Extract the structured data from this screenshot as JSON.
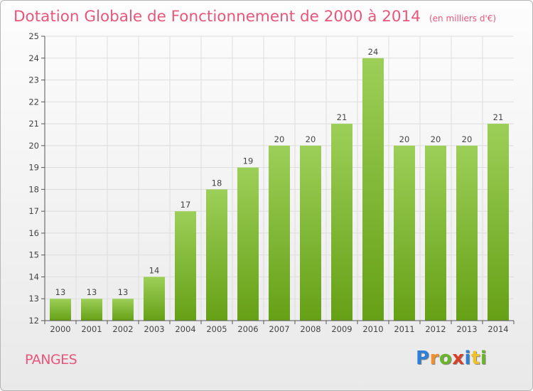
{
  "header": {
    "title": "Dotation Globale de Fonctionnement de 2000 à 2014",
    "unit_note": "(en milliers d'€)"
  },
  "commune": "PANGES",
  "brand": {
    "letters": [
      "P",
      "r",
      "o",
      "x",
      "i",
      "t",
      "i"
    ],
    "colors": [
      "#2f7fd6",
      "#f0912c",
      "#6bb52c",
      "#d9402b",
      "#2f7fd6",
      "#f0c12c",
      "#6bb52c"
    ]
  },
  "chart_data": {
    "type": "bar",
    "categories": [
      "2000",
      "2001",
      "2002",
      "2003",
      "2004",
      "2005",
      "2006",
      "2007",
      "2008",
      "2009",
      "2010",
      "2011",
      "2012",
      "2013",
      "2014"
    ],
    "values": [
      13,
      13,
      13,
      14,
      17,
      18,
      19,
      20,
      20,
      21,
      24,
      20,
      20,
      20,
      21
    ],
    "data_labels": [
      "13",
      "13",
      "13",
      "14",
      "17",
      "18",
      "19",
      "20",
      "20",
      "21",
      "24",
      "20",
      "20",
      "20",
      "21"
    ],
    "y_ticks": [
      "12",
      "13",
      "14",
      "15",
      "16",
      "17",
      "18",
      "19",
      "20",
      "21",
      "22",
      "23",
      "24",
      "25"
    ],
    "ylim": [
      12,
      25
    ],
    "grid": true,
    "colors": {
      "bar_top": "#9ccf58",
      "bar_bottom": "#66a016",
      "grid": "#dddddd",
      "axis": "#555555"
    }
  }
}
